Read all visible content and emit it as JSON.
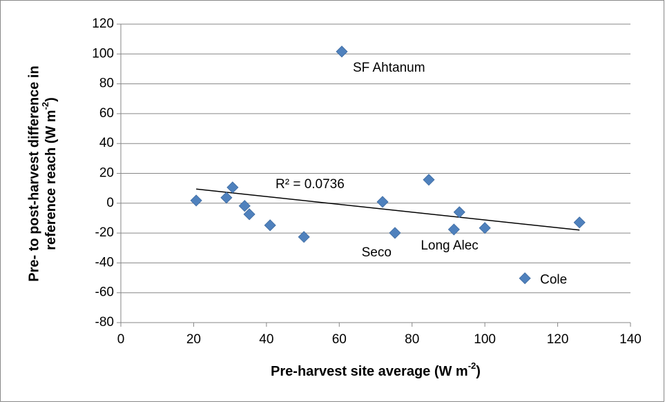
{
  "chart_data": {
    "type": "scatter",
    "x_label": {
      "text": "Pre-harvest site average (W m",
      "sup": "-2",
      "end": ")"
    },
    "y_label": {
      "line1": "Pre- to post-harvest difference in",
      "text": "reference reach (W m",
      "sup": "-2",
      "end": ")"
    },
    "x": [
      20.7,
      29,
      30.7,
      34,
      35.3,
      41,
      50.3,
      60.7,
      71.9,
      75.3,
      84.6,
      91.5,
      93,
      100,
      111,
      126
    ],
    "values": [
      1.8,
      3.7,
      10.6,
      -1.8,
      -7.4,
      -14.8,
      -22.6,
      101.6,
      0.9,
      -19.9,
      15.7,
      -17.6,
      -6,
      -16.6,
      -50.3,
      -12.9
    ],
    "point_labels": [
      null,
      null,
      null,
      null,
      null,
      null,
      null,
      "SF Ahtanum",
      null,
      "Seco",
      null,
      "Long Alec",
      null,
      null,
      "Cole",
      null
    ],
    "color": "#4f81bd",
    "trendline": {
      "x": [
        20.7,
        126
      ],
      "values": [
        9.5,
        -18
      ],
      "label": "R² = 0.0736"
    },
    "xlim": [
      0,
      140
    ],
    "xticks": [
      0,
      20,
      40,
      60,
      80,
      100,
      120,
      140
    ],
    "ylim": [
      -80,
      120
    ],
    "yticks": [
      -80,
      -60,
      -40,
      -20,
      0,
      20,
      40,
      60,
      80,
      100,
      120
    ],
    "grid": true
  }
}
